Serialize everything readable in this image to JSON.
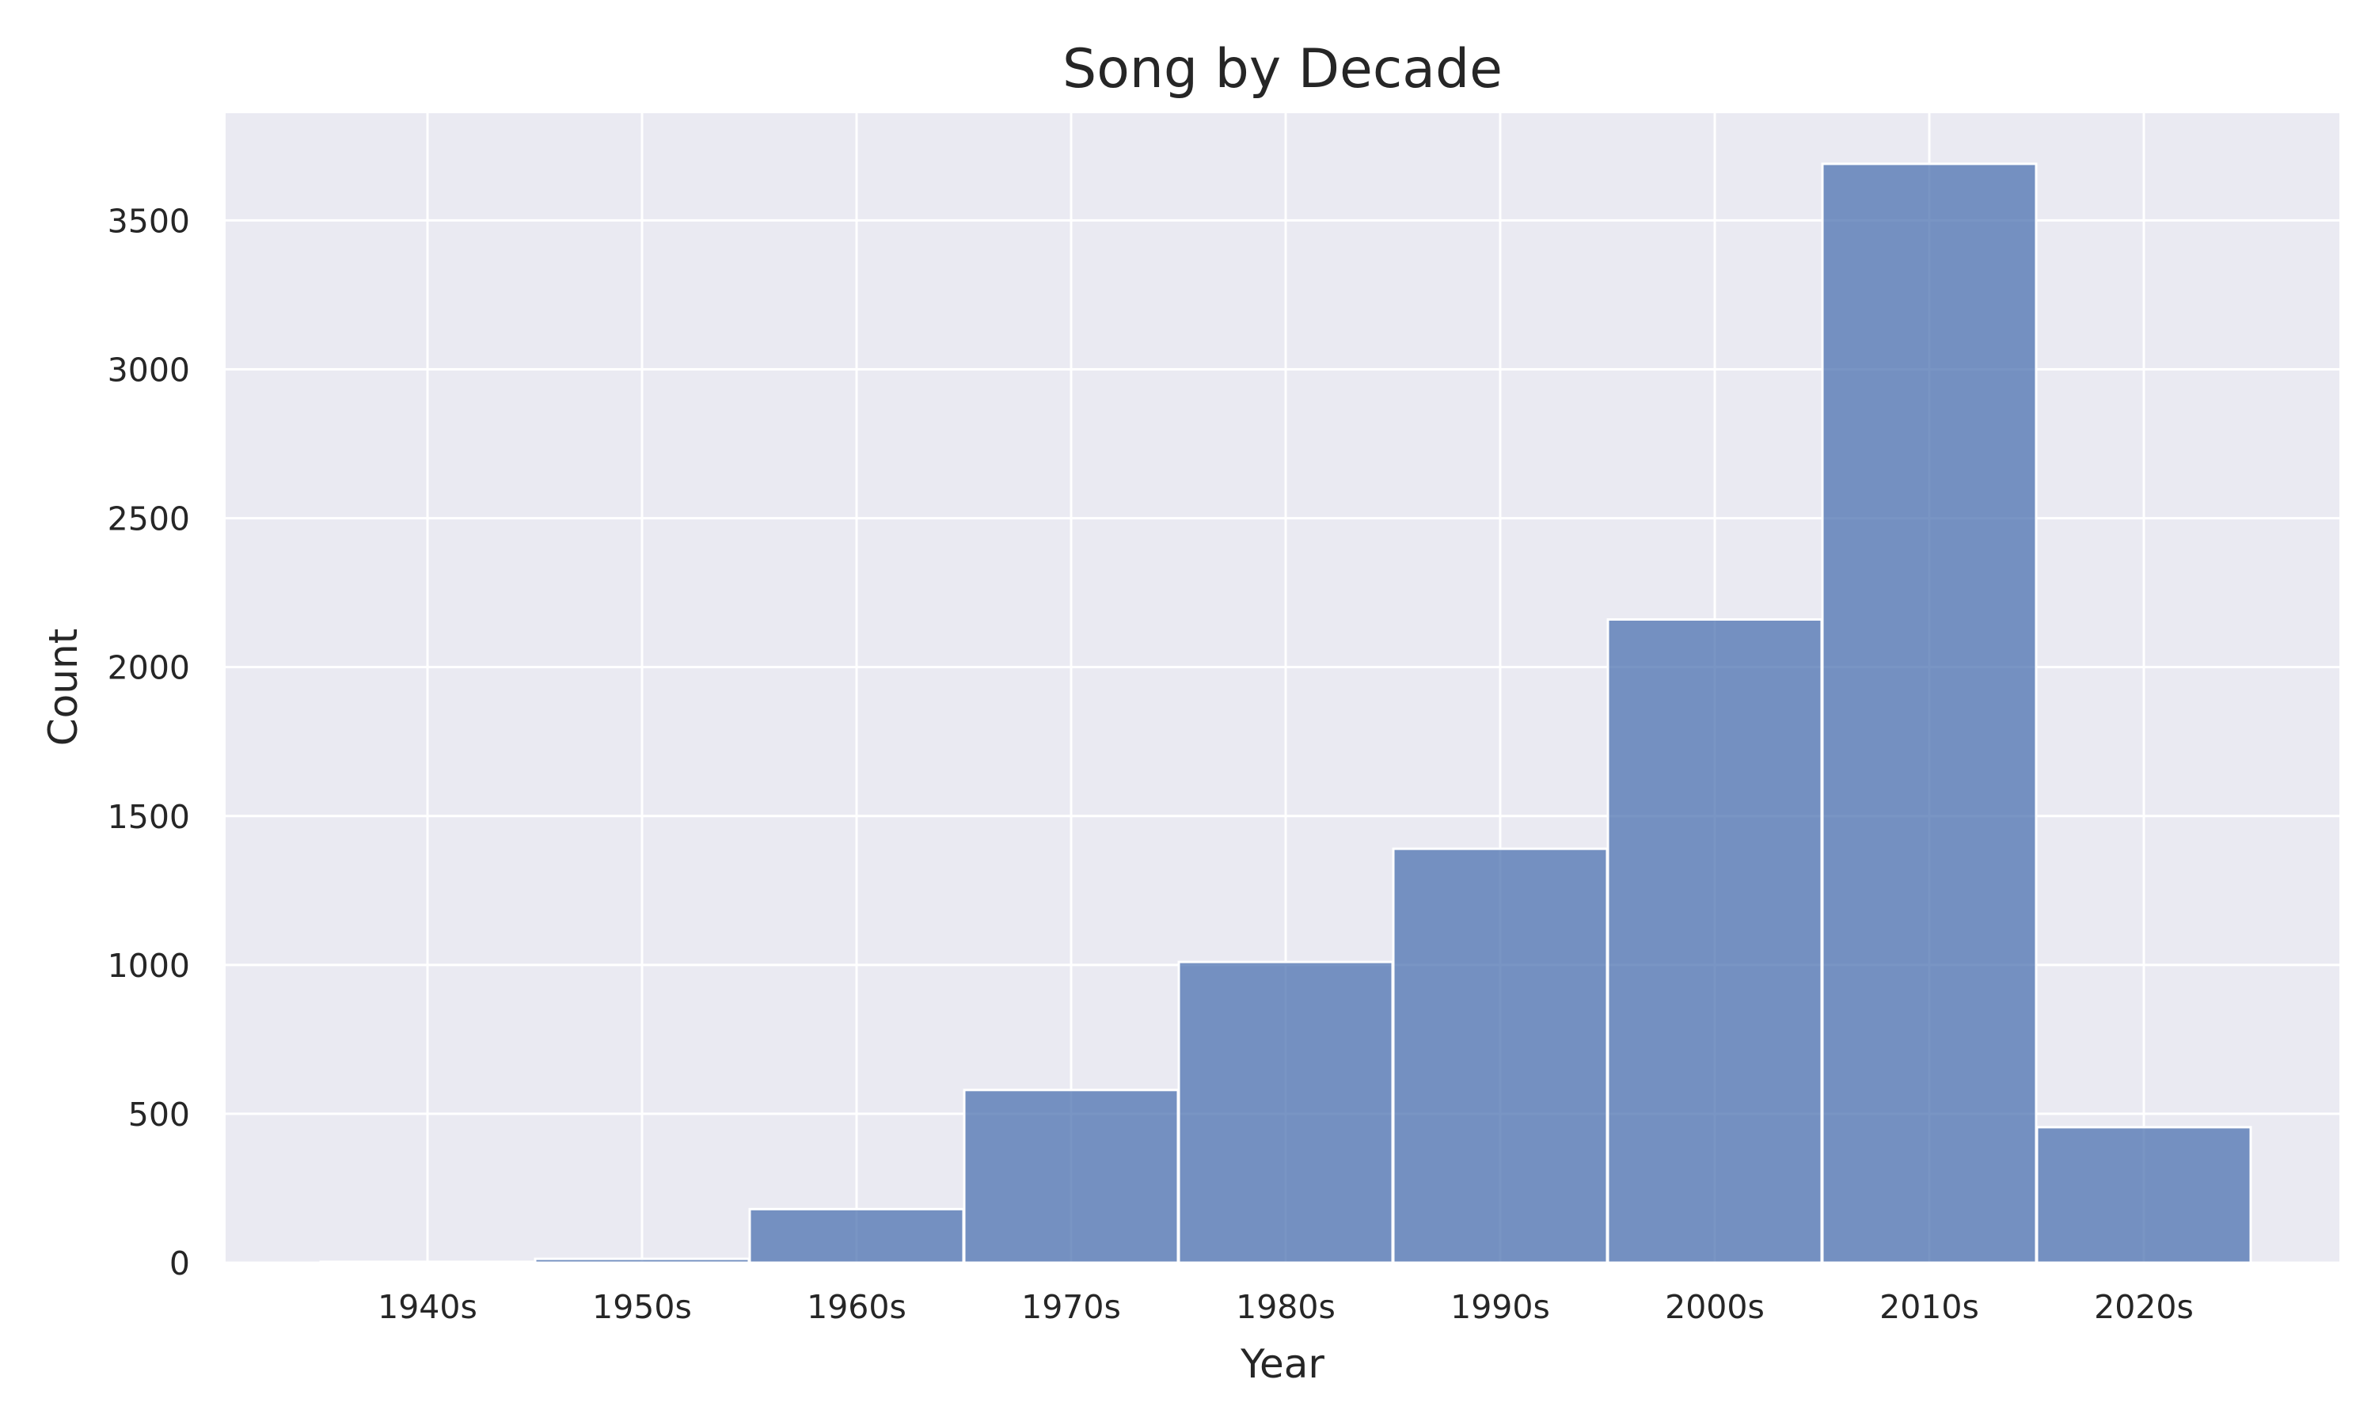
{
  "chart_data": {
    "type": "bar",
    "title": "Song by Decade",
    "xlabel": "Year",
    "ylabel": "Count",
    "categories": [
      "1940s",
      "1950s",
      "1960s",
      "1970s",
      "1980s",
      "1990s",
      "2000s",
      "2010s",
      "2020s"
    ],
    "values": [
      3,
      13,
      180,
      580,
      1010,
      1390,
      2160,
      3690,
      455
    ],
    "y_ticks": [
      "0",
      "500",
      "1000",
      "1500",
      "2000",
      "2500",
      "3000",
      "3500"
    ],
    "ylim": [
      0,
      3860
    ],
    "grid": true,
    "legend": "none",
    "colors": {
      "background": "#eaeaf2",
      "bar": "#4c72b0",
      "grid": "#ffffff"
    }
  }
}
